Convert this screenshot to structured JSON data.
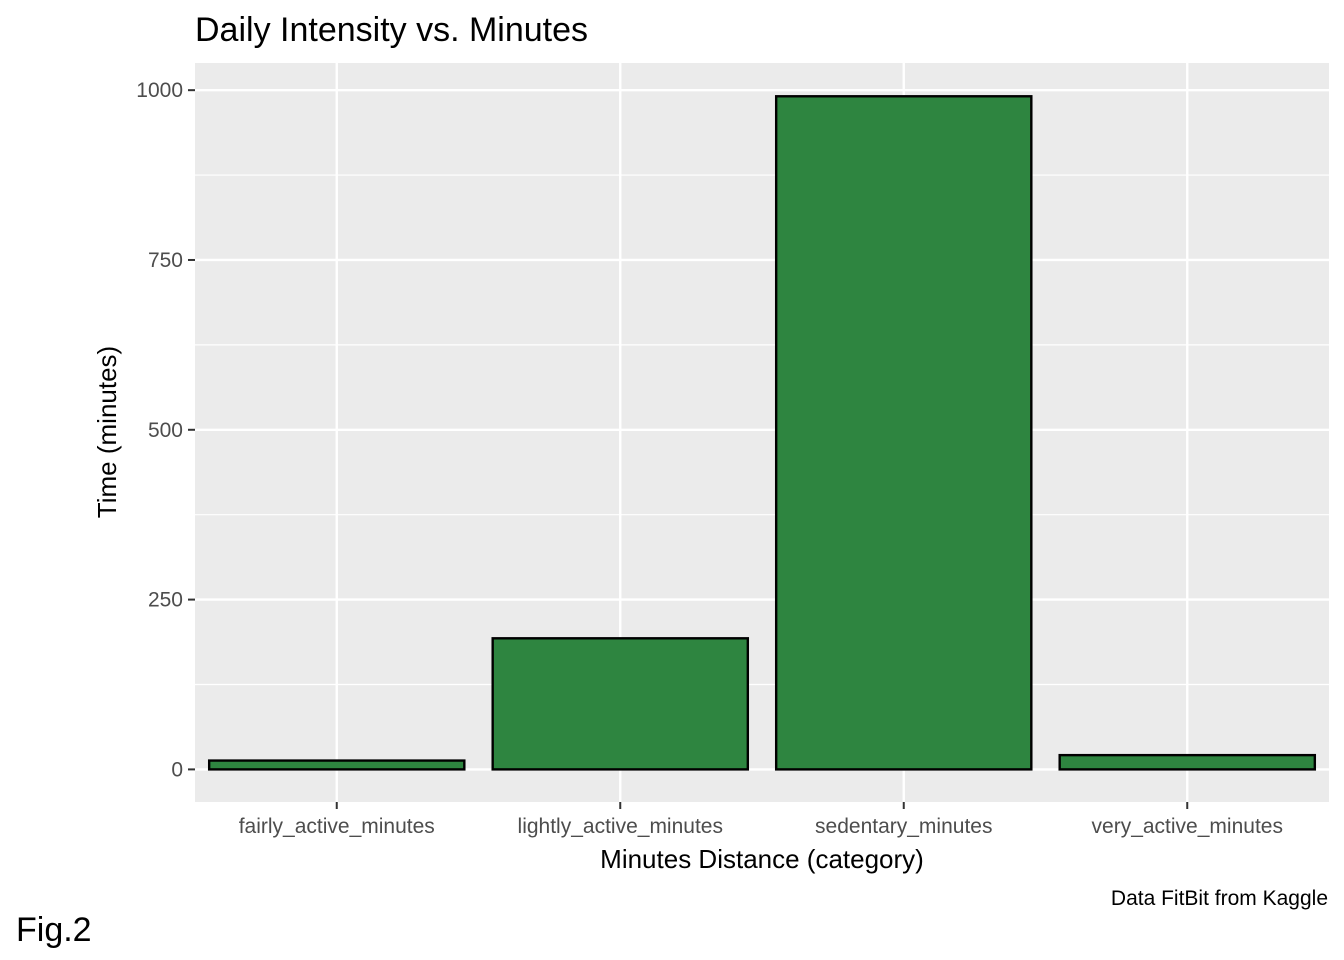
{
  "chart_data": {
    "type": "bar",
    "title": "Daily Intensity vs. Minutes",
    "xlabel": "Minutes Distance (category)",
    "ylabel": "Time (minutes)",
    "caption": "Data FitBit from Kaggle",
    "tag": "Fig.2",
    "categories": [
      "fairly_active_minutes",
      "lightly_active_minutes",
      "sedentary_minutes",
      "very_active_minutes"
    ],
    "values": [
      13,
      193,
      991,
      21
    ],
    "ylim": [
      -48,
      1040
    ],
    "yticks": [
      0,
      250,
      500,
      750,
      1000
    ],
    "grid": true,
    "legend": "none",
    "colors": {
      "bar_fill": "#2e8540",
      "bar_stroke": "#000000",
      "panel_bg": "#ebebeb",
      "grid": "#ffffff"
    }
  }
}
